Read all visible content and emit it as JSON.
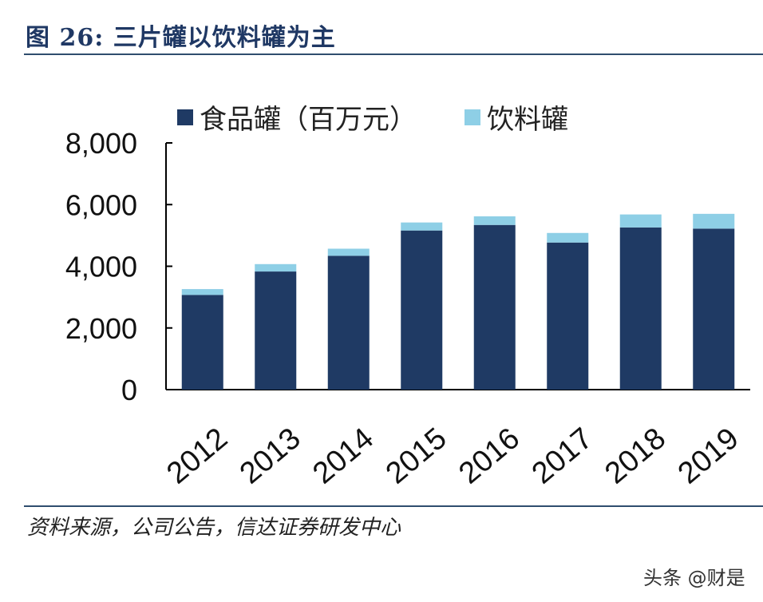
{
  "title": "图 26:  三片罐以饮料罐为主",
  "source": "资料来源，公司公告，信达证券研发中心",
  "watermark": "头条 @财是",
  "chart_data": {
    "type": "bar",
    "stacked": true,
    "categories": [
      "2012",
      "2013",
      "2014",
      "2015",
      "2016",
      "2017",
      "2018",
      "2019"
    ],
    "series": [
      {
        "name": "食品罐（百万元）",
        "color": "#1f3a64",
        "values": [
          3070,
          3830,
          4340,
          5160,
          5340,
          4770,
          5260,
          5220
        ]
      },
      {
        "name": "饮料罐",
        "color": "#8ecfe6",
        "values": [
          190,
          240,
          230,
          260,
          280,
          310,
          420,
          480
        ]
      }
    ],
    "ylim": [
      0,
      8000
    ],
    "yticks": [
      "0",
      "2,000",
      "4,000",
      "6,000",
      "8,000"
    ],
    "ytick_values": [
      0,
      2000,
      4000,
      6000,
      8000
    ],
    "grid": false,
    "legend": "top"
  }
}
